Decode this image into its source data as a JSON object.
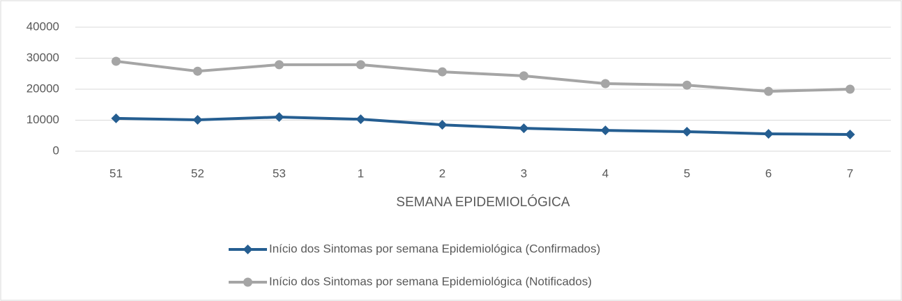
{
  "chart_data": {
    "type": "line",
    "x_label": "SEMANA EPIDEMIOLÓGICA",
    "categories": [
      "51",
      "52",
      "53",
      "1",
      "2",
      "3",
      "4",
      "5",
      "6",
      "7"
    ],
    "series": [
      {
        "name": "Início dos Sintomas por semana Epidemiológica (Confirmados)",
        "color": "#255e91",
        "marker": "diamond",
        "values": [
          10600,
          10100,
          11000,
          10300,
          8500,
          7400,
          6700,
          6300,
          5600,
          5400
        ]
      },
      {
        "name": "Início dos Sintomas por semana Epidemiológica (Notificados)",
        "color": "#a5a5a5",
        "marker": "circle",
        "values": [
          29000,
          25800,
          27900,
          27900,
          25600,
          24300,
          21800,
          21300,
          19300,
          20000
        ]
      }
    ],
    "ylim": [
      0,
      40000
    ],
    "yticks": [
      0,
      10000,
      20000,
      30000,
      40000
    ],
    "grid": true,
    "legend": "bottom"
  }
}
